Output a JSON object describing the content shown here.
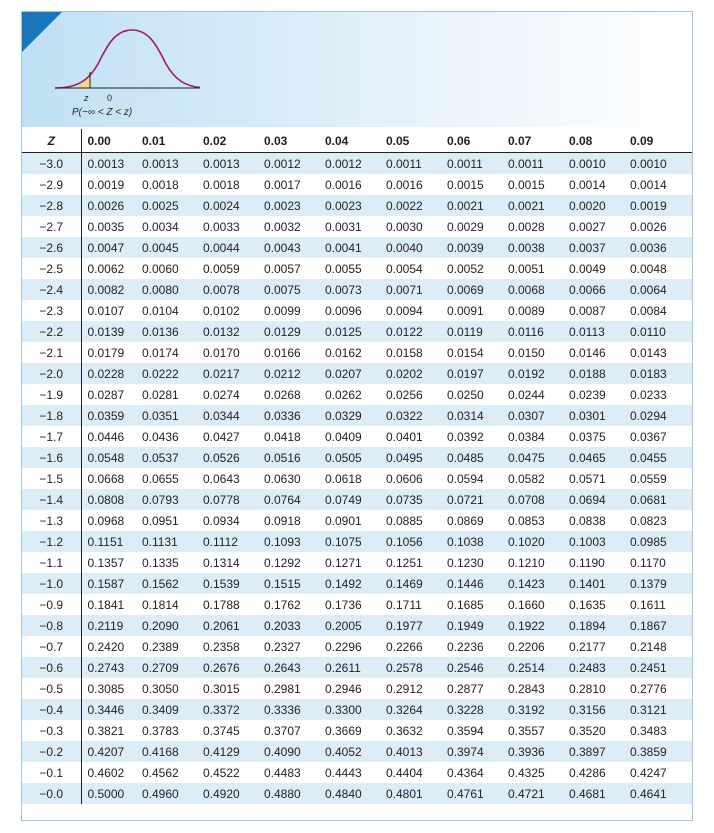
{
  "graphic": {
    "z_label": "z",
    "zero_label": "0",
    "probability_label": "P(−∞ < Z < z)"
  },
  "table": {
    "z_header": "Z",
    "columns": [
      "0.00",
      "0.01",
      "0.02",
      "0.03",
      "0.04",
      "0.05",
      "0.06",
      "0.07",
      "0.08",
      "0.09"
    ],
    "rows": [
      {
        "z": "−3.0",
        "v": [
          "0.0013",
          "0.0013",
          "0.0013",
          "0.0012",
          "0.0012",
          "0.0011",
          "0.0011",
          "0.0011",
          "0.0010",
          "0.0010"
        ]
      },
      {
        "z": "−2.9",
        "v": [
          "0.0019",
          "0.0018",
          "0.0018",
          "0.0017",
          "0.0016",
          "0.0016",
          "0.0015",
          "0.0015",
          "0.0014",
          "0.0014"
        ]
      },
      {
        "z": "−2.8",
        "v": [
          "0.0026",
          "0.0025",
          "0.0024",
          "0.0023",
          "0.0023",
          "0.0022",
          "0.0021",
          "0.0021",
          "0.0020",
          "0.0019"
        ]
      },
      {
        "z": "−2.7",
        "v": [
          "0.0035",
          "0.0034",
          "0.0033",
          "0.0032",
          "0.0031",
          "0.0030",
          "0.0029",
          "0.0028",
          "0.0027",
          "0.0026"
        ]
      },
      {
        "z": "−2.6",
        "v": [
          "0.0047",
          "0.0045",
          "0.0044",
          "0.0043",
          "0.0041",
          "0.0040",
          "0.0039",
          "0.0038",
          "0.0037",
          "0.0036"
        ]
      },
      {
        "z": "−2.5",
        "v": [
          "0.0062",
          "0.0060",
          "0.0059",
          "0.0057",
          "0.0055",
          "0.0054",
          "0.0052",
          "0.0051",
          "0.0049",
          "0.0048"
        ]
      },
      {
        "z": "−2.4",
        "v": [
          "0.0082",
          "0.0080",
          "0.0078",
          "0.0075",
          "0.0073",
          "0.0071",
          "0.0069",
          "0.0068",
          "0.0066",
          "0.0064"
        ]
      },
      {
        "z": "−2.3",
        "v": [
          "0.0107",
          "0.0104",
          "0.0102",
          "0.0099",
          "0.0096",
          "0.0094",
          "0.0091",
          "0.0089",
          "0.0087",
          "0.0084"
        ]
      },
      {
        "z": "−2.2",
        "v": [
          "0.0139",
          "0.0136",
          "0.0132",
          "0.0129",
          "0.0125",
          "0.0122",
          "0.0119",
          "0.0116",
          "0.0113",
          "0.0110"
        ]
      },
      {
        "z": "−2.1",
        "v": [
          "0.0179",
          "0.0174",
          "0.0170",
          "0.0166",
          "0.0162",
          "0.0158",
          "0.0154",
          "0.0150",
          "0.0146",
          "0.0143"
        ]
      },
      {
        "z": "−2.0",
        "v": [
          "0.0228",
          "0.0222",
          "0.0217",
          "0.0212",
          "0.0207",
          "0.0202",
          "0.0197",
          "0.0192",
          "0.0188",
          "0.0183"
        ]
      },
      {
        "z": "−1.9",
        "v": [
          "0.0287",
          "0.0281",
          "0.0274",
          "0.0268",
          "0.0262",
          "0.0256",
          "0.0250",
          "0.0244",
          "0.0239",
          "0.0233"
        ]
      },
      {
        "z": "−1.8",
        "v": [
          "0.0359",
          "0.0351",
          "0.0344",
          "0.0336",
          "0.0329",
          "0.0322",
          "0.0314",
          "0.0307",
          "0.0301",
          "0.0294"
        ]
      },
      {
        "z": "−1.7",
        "v": [
          "0.0446",
          "0.0436",
          "0.0427",
          "0.0418",
          "0.0409",
          "0.0401",
          "0.0392",
          "0.0384",
          "0.0375",
          "0.0367"
        ]
      },
      {
        "z": "−1.6",
        "v": [
          "0.0548",
          "0.0537",
          "0.0526",
          "0.0516",
          "0.0505",
          "0.0495",
          "0.0485",
          "0.0475",
          "0.0465",
          "0.0455"
        ]
      },
      {
        "z": "−1.5",
        "v": [
          "0.0668",
          "0.0655",
          "0.0643",
          "0.0630",
          "0.0618",
          "0.0606",
          "0.0594",
          "0.0582",
          "0.0571",
          "0.0559"
        ]
      },
      {
        "z": "−1.4",
        "v": [
          "0.0808",
          "0.0793",
          "0.0778",
          "0.0764",
          "0.0749",
          "0.0735",
          "0.0721",
          "0.0708",
          "0.0694",
          "0.0681"
        ]
      },
      {
        "z": "−1.3",
        "v": [
          "0.0968",
          "0.0951",
          "0.0934",
          "0.0918",
          "0.0901",
          "0.0885",
          "0.0869",
          "0.0853",
          "0.0838",
          "0.0823"
        ]
      },
      {
        "z": "−1.2",
        "v": [
          "0.1151",
          "0.1131",
          "0.1112",
          "0.1093",
          "0.1075",
          "0.1056",
          "0.1038",
          "0.1020",
          "0.1003",
          "0.0985"
        ]
      },
      {
        "z": "−1.1",
        "v": [
          "0.1357",
          "0.1335",
          "0.1314",
          "0.1292",
          "0.1271",
          "0.1251",
          "0.1230",
          "0.1210",
          "0.1190",
          "0.1170"
        ]
      },
      {
        "z": "−1.0",
        "v": [
          "0.1587",
          "0.1562",
          "0.1539",
          "0.1515",
          "0.1492",
          "0.1469",
          "0.1446",
          "0.1423",
          "0.1401",
          "0.1379"
        ]
      },
      {
        "z": "−0.9",
        "v": [
          "0.1841",
          "0.1814",
          "0.1788",
          "0.1762",
          "0.1736",
          "0.1711",
          "0.1685",
          "0.1660",
          "0.1635",
          "0.1611"
        ]
      },
      {
        "z": "−0.8",
        "v": [
          "0.2119",
          "0.2090",
          "0.2061",
          "0.2033",
          "0.2005",
          "0.1977",
          "0.1949",
          "0.1922",
          "0.1894",
          "0.1867"
        ]
      },
      {
        "z": "−0.7",
        "v": [
          "0.2420",
          "0.2389",
          "0.2358",
          "0.2327",
          "0.2296",
          "0.2266",
          "0.2236",
          "0.2206",
          "0.2177",
          "0.2148"
        ]
      },
      {
        "z": "−0.6",
        "v": [
          "0.2743",
          "0.2709",
          "0.2676",
          "0.2643",
          "0.2611",
          "0.2578",
          "0.2546",
          "0.2514",
          "0.2483",
          "0.2451"
        ]
      },
      {
        "z": "−0.5",
        "v": [
          "0.3085",
          "0.3050",
          "0.3015",
          "0.2981",
          "0.2946",
          "0.2912",
          "0.2877",
          "0.2843",
          "0.2810",
          "0.2776"
        ]
      },
      {
        "z": "−0.4",
        "v": [
          "0.3446",
          "0.3409",
          "0.3372",
          "0.3336",
          "0.3300",
          "0.3264",
          "0.3228",
          "0.3192",
          "0.3156",
          "0.3121"
        ]
      },
      {
        "z": "−0.3",
        "v": [
          "0.3821",
          "0.3783",
          "0.3745",
          "0.3707",
          "0.3669",
          "0.3632",
          "0.3594",
          "0.3557",
          "0.3520",
          "0.3483"
        ]
      },
      {
        "z": "−0.2",
        "v": [
          "0.4207",
          "0.4168",
          "0.4129",
          "0.4090",
          "0.4052",
          "0.4013",
          "0.3974",
          "0.3936",
          "0.3897",
          "0.3859"
        ]
      },
      {
        "z": "−0.1",
        "v": [
          "0.4602",
          "0.4562",
          "0.4522",
          "0.4483",
          "0.4443",
          "0.4404",
          "0.4364",
          "0.4325",
          "0.4286",
          "0.4247"
        ]
      },
      {
        "z": "−0.0",
        "v": [
          "0.5000",
          "0.4960",
          "0.4920",
          "0.4880",
          "0.4840",
          "0.4801",
          "0.4761",
          "0.4721",
          "0.4681",
          "0.4641"
        ]
      }
    ]
  }
}
